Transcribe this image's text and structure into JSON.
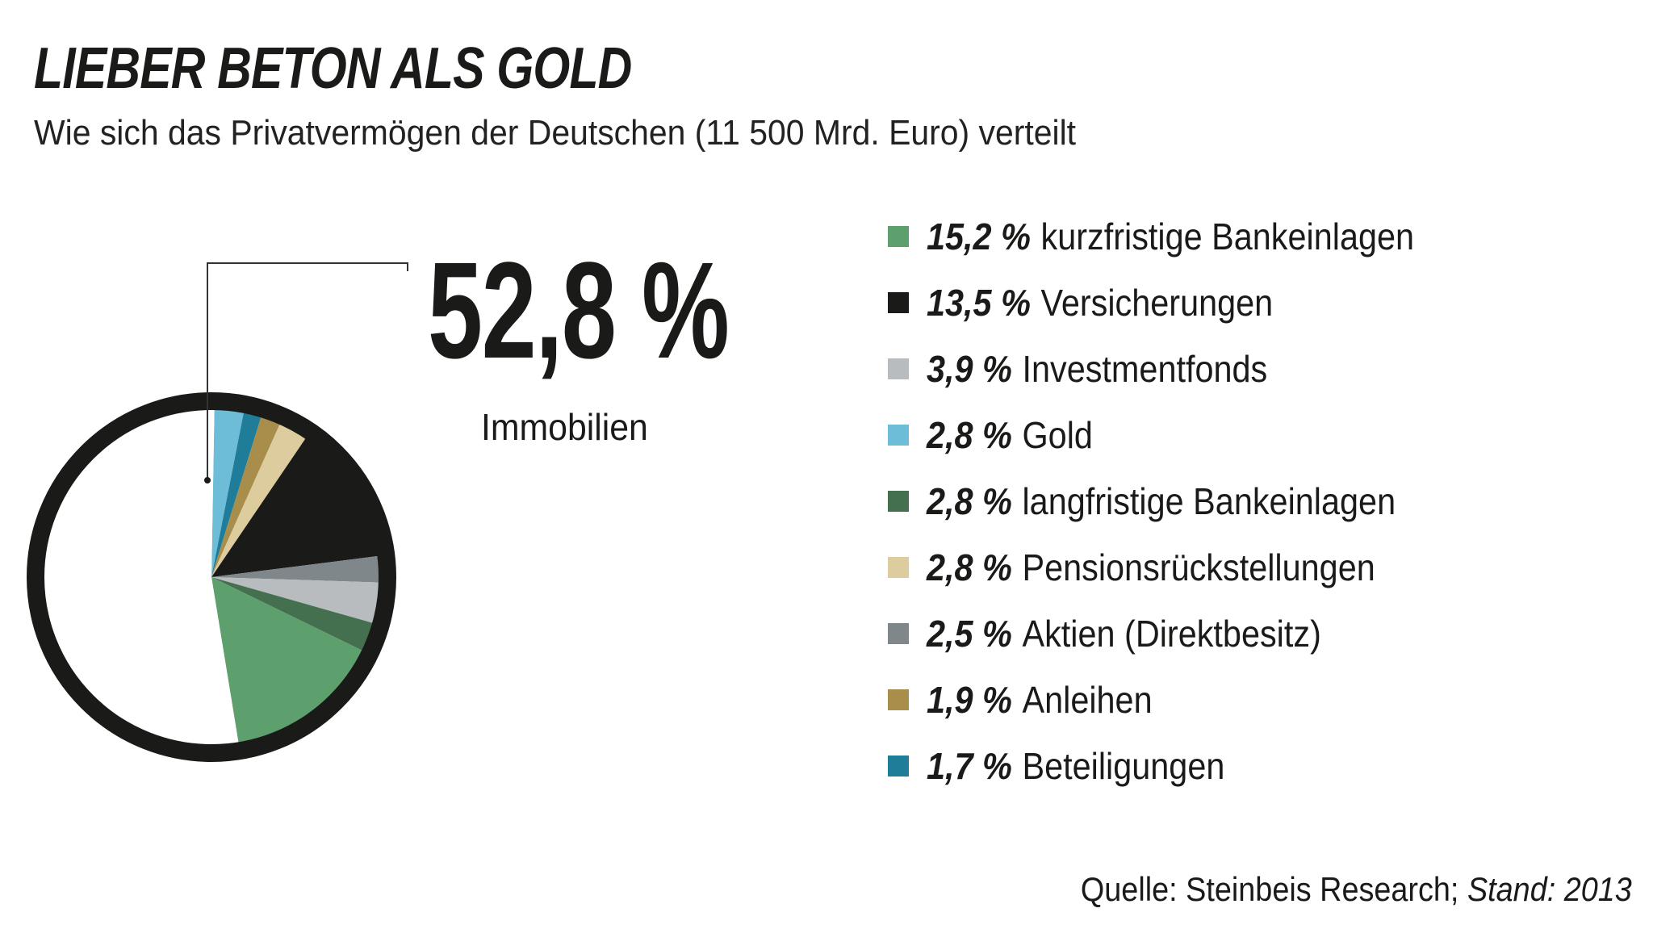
{
  "header": {
    "title": "LIEBER BETON ALS GOLD",
    "subtitle": "Wie sich das Privatvermögen der Deutschen (11 500 Mrd. Euro) verteilt"
  },
  "highlight": {
    "value": "52,8 %",
    "label": "Immobilien"
  },
  "source": {
    "text": "Quelle: Steinbeis Research;",
    "stand": "Stand: 2013"
  },
  "chart_data": {
    "type": "pie",
    "title": "LIEBER BETON ALS GOLD",
    "subtitle": "Wie sich das Privatvermögen der Deutschen (11 500 Mrd. Euro) verteilt",
    "unit": "%",
    "pie_order_clockwise_from_top": [
      "Gold",
      "Beteiligungen",
      "Anleihen",
      "Pensionsrückstellungen",
      "Versicherungen",
      "Aktien (Direktbesitz)",
      "Investmentfonds",
      "langfristige Bankeinlagen",
      "kurzfristige Bankeinlagen",
      "Immobilien"
    ],
    "slices": [
      {
        "label": "Immobilien",
        "value": 52.8,
        "color": "#ffffff"
      },
      {
        "label": "kurzfristige Bankeinlagen",
        "value": 15.2,
        "pct_text": "15,2 %",
        "color": "#5e9f6e"
      },
      {
        "label": "Versicherungen",
        "value": 13.5,
        "pct_text": "13,5 %",
        "color": "#1a1a18"
      },
      {
        "label": "Investmentfonds",
        "value": 3.9,
        "pct_text": "3,9 %",
        "color": "#b8bcbf"
      },
      {
        "label": "Gold",
        "value": 2.8,
        "pct_text": "2,8 %",
        "color": "#6dbcd8"
      },
      {
        "label": "langfristige Bankeinlagen",
        "value": 2.8,
        "pct_text": "2,8 %",
        "color": "#45704f"
      },
      {
        "label": "Pensionsrückstellungen",
        "value": 2.8,
        "pct_text": "2,8 %",
        "color": "#dccc9e"
      },
      {
        "label": "Aktien (Direktbesitz)",
        "value": 2.5,
        "pct_text": "2,5 %",
        "color": "#7f878b"
      },
      {
        "label": "Anleihen",
        "value": 1.9,
        "pct_text": "1,9 %",
        "color": "#a88e4a"
      },
      {
        "label": "Beteiligungen",
        "value": 1.7,
        "pct_text": "1,7 %",
        "color": "#1f7d99"
      }
    ],
    "legend_position": "right"
  }
}
